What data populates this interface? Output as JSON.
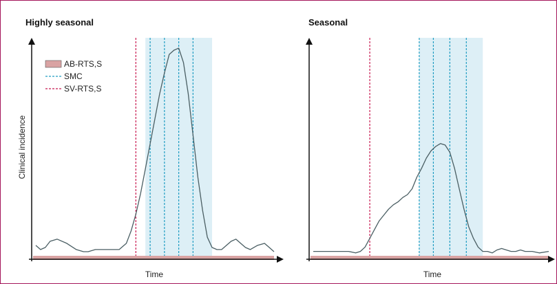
{
  "colors": {
    "frame": "#a3155a",
    "curve": "#4a5e63",
    "axis": "#111111",
    "ab_rtss": "#d9a3a3",
    "smc_window": "#ddeff6",
    "smc_line": "#1e9cc2",
    "sv_rtss_line": "#c8174f"
  },
  "legend": {
    "ab_rtss": "AB-RTS,S",
    "smc": "SMC",
    "sv_rtss": "SV-RTS,S"
  },
  "chart_data": [
    {
      "type": "line",
      "title": "Highly seasonal",
      "xlabel": "Time",
      "ylabel": "Clinical incidence",
      "xlim": [
        0,
        100
      ],
      "ylim": [
        0,
        100
      ],
      "grid": false,
      "legend_position": "top-left",
      "series": [
        {
          "name": "Clinical incidence",
          "x": [
            0,
            2,
            4,
            6,
            9,
            13,
            17,
            20,
            22,
            25,
            30,
            35,
            38,
            40,
            42,
            44,
            46,
            48,
            50,
            52,
            54,
            56,
            58,
            60,
            62,
            64,
            66,
            68,
            70,
            72,
            74,
            76,
            78,
            80,
            82,
            84,
            86,
            88,
            90,
            93,
            96,
            98,
            100
          ],
          "y": [
            5,
            3,
            4,
            7,
            8,
            6,
            3,
            2,
            2,
            3,
            3,
            3,
            6,
            12,
            20,
            30,
            42,
            54,
            66,
            78,
            88,
            97,
            99,
            100,
            93,
            78,
            58,
            38,
            22,
            9,
            4,
            3,
            3,
            5,
            7,
            8,
            6,
            4,
            3,
            5,
            6,
            4,
            2
          ]
        }
      ],
      "ab_rtss_band": [
        0,
        100
      ],
      "smc_window": [
        46,
        74
      ],
      "smc_rounds": [
        48,
        54,
        60,
        66
      ],
      "sv_rtss": [
        42
      ]
    },
    {
      "type": "line",
      "title": "Seasonal",
      "xlabel": "Time",
      "ylabel": "",
      "xlim": [
        0,
        100
      ],
      "ylim": [
        0,
        100
      ],
      "grid": false,
      "series": [
        {
          "name": "Clinical incidence",
          "x": [
            0,
            5,
            10,
            15,
            18,
            20,
            22,
            24,
            26,
            28,
            30,
            32,
            34,
            36,
            38,
            40,
            42,
            44,
            46,
            48,
            50,
            52,
            54,
            56,
            58,
            60,
            62,
            64,
            66,
            68,
            70,
            72,
            74,
            76,
            78,
            80,
            82,
            84,
            86,
            88,
            90,
            93,
            96,
            100
          ],
          "y": [
            3,
            3,
            3,
            3,
            2,
            3,
            6,
            12,
            18,
            24,
            28,
            32,
            35,
            37,
            40,
            42,
            46,
            54,
            60,
            67,
            72,
            75,
            77,
            76,
            71,
            60,
            46,
            32,
            20,
            12,
            6,
            3,
            3,
            2,
            4,
            5,
            4,
            3,
            3,
            4,
            3,
            3,
            2,
            3
          ]
        }
      ],
      "ab_rtss_band": [
        0,
        100
      ],
      "smc_window": [
        45,
        72
      ],
      "smc_rounds": [
        45,
        51,
        58,
        65
      ],
      "sv_rtss": [
        24
      ]
    }
  ]
}
